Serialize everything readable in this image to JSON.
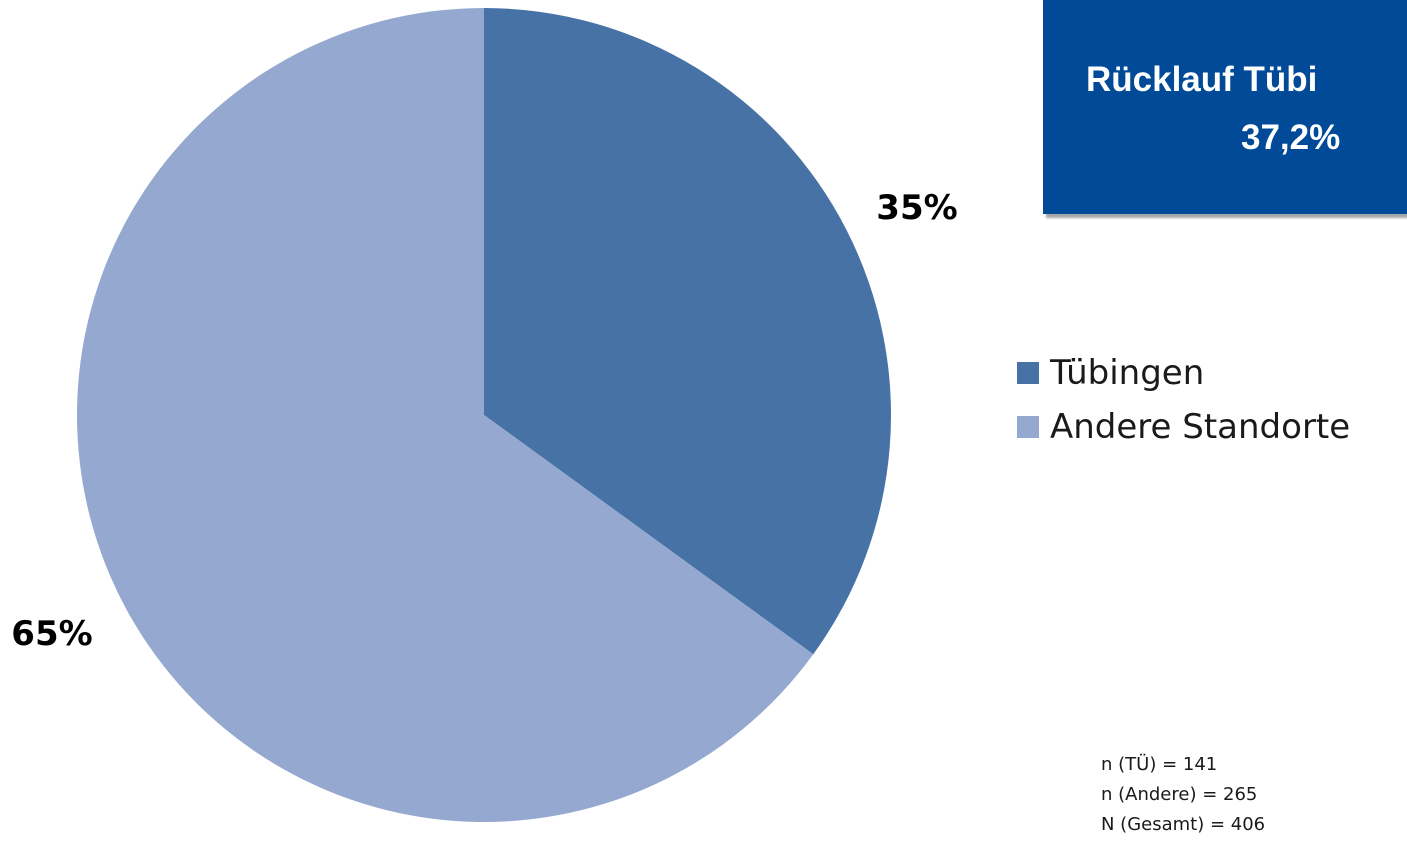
{
  "chart_data": {
    "type": "pie",
    "categories": [
      "Tübingen",
      "Andere Standorte"
    ],
    "values": [
      35,
      65
    ],
    "data_labels": [
      "35%",
      "65%"
    ],
    "colors": [
      "#4672a6",
      "#95a9d0"
    ],
    "start_angle_deg": 0,
    "direction": "clockwise",
    "legend_position": "right"
  },
  "callout": {
    "line1": "Rücklauf Tübi",
    "line2": "37,2%",
    "background_color": "#004a98"
  },
  "legend": {
    "items": [
      {
        "label": "Tübingen",
        "color": "#4672a6"
      },
      {
        "label": "Andere Standorte",
        "color": "#95a9d0"
      }
    ]
  },
  "counts": {
    "lines": [
      "n (TÜ) = 141",
      "n (Andere) = 265",
      "N (Gesamt) = 406"
    ]
  }
}
